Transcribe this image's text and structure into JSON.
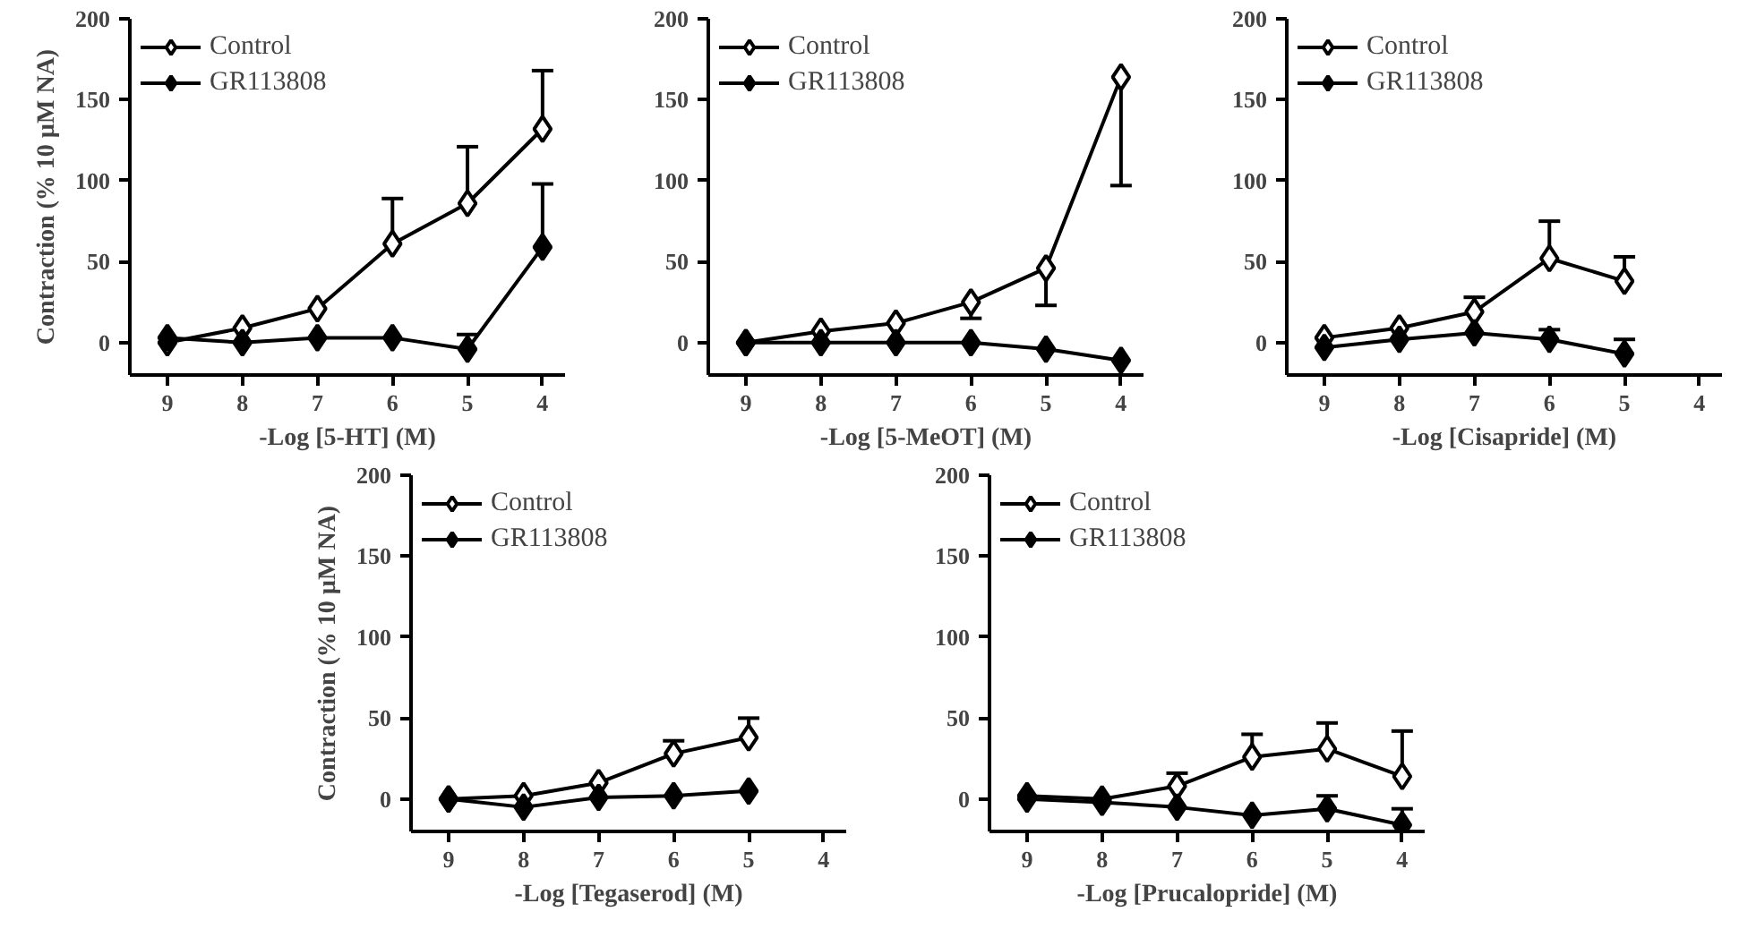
{
  "chart_data": [
    {
      "type": "line",
      "xlabel": "-Log [5-HT] (M)",
      "ylabel": "Contraction (% 10 µM NA)",
      "x": [
        9,
        8,
        7,
        6,
        5,
        4
      ],
      "xlim": [
        9.5,
        3.7
      ],
      "xticks": [
        9,
        8,
        7,
        6,
        5,
        4
      ],
      "ylim": [
        -20,
        200
      ],
      "yticks": [
        0,
        50,
        100,
        150,
        200
      ],
      "legend": "top left",
      "marker": "diamond",
      "grid": false,
      "series": [
        {
          "name": "Control",
          "color": "#ffffff",
          "values": [
            0,
            9,
            21,
            61,
            86,
            132
          ],
          "errors": [
            null,
            null,
            null,
            [
              61,
              89
            ],
            [
              86,
              121
            ],
            [
              132,
              168
            ]
          ]
        },
        {
          "name": "GR113808",
          "color": "#000000",
          "values": [
            3,
            0,
            3,
            3,
            -4,
            59
          ],
          "errors": [
            null,
            null,
            null,
            null,
            [
              -4,
              5
            ],
            [
              59,
              98
            ]
          ]
        }
      ]
    },
    {
      "type": "line",
      "xlabel": "-Log [5-MeOT] (M)",
      "x": [
        9,
        8,
        7,
        6,
        5,
        4
      ],
      "xlim": [
        9.5,
        3.7
      ],
      "xticks": [
        9,
        8,
        7,
        6,
        5,
        4
      ],
      "ylim": [
        -20,
        200
      ],
      "yticks": [
        0,
        50,
        100,
        150,
        200
      ],
      "legend": "top left",
      "marker": "diamond",
      "grid": false,
      "series": [
        {
          "name": "Control",
          "color": "#ffffff",
          "values": [
            0,
            7,
            12,
            25,
            46,
            164
          ],
          "errors": [
            null,
            null,
            null,
            [
              15,
              25
            ],
            [
              23,
              46
            ],
            [
              97,
              164
            ]
          ]
        },
        {
          "name": "GR113808",
          "color": "#000000",
          "values": [
            0,
            0,
            0,
            0,
            -4,
            -11
          ]
        }
      ]
    },
    {
      "type": "line",
      "xlabel": "-Log [Cisapride] (M)",
      "x": [
        9,
        8,
        7,
        6,
        5
      ],
      "xlim": [
        9.5,
        3.7
      ],
      "xticks": [
        9,
        8,
        7,
        6,
        5,
        4
      ],
      "ylim": [
        -20,
        200
      ],
      "yticks": [
        0,
        50,
        100,
        150,
        200
      ],
      "legend": "top left",
      "marker": "diamond",
      "grid": false,
      "series": [
        {
          "name": "Control",
          "color": "#ffffff",
          "values": [
            3,
            9,
            19,
            52,
            38
          ],
          "errors": [
            null,
            null,
            [
              19,
              28
            ],
            [
              52,
              75
            ],
            [
              38,
              53
            ]
          ]
        },
        {
          "name": "GR113808",
          "color": "#000000",
          "values": [
            -3,
            2,
            6,
            2,
            -7
          ],
          "errors": [
            null,
            null,
            null,
            [
              2,
              8
            ],
            [
              -7,
              2
            ]
          ]
        }
      ]
    },
    {
      "type": "line",
      "xlabel": "-Log [Tegaserod] (M)",
      "ylabel": "Contraction (% 10 µM NA)",
      "x": [
        9,
        8,
        7,
        6,
        5
      ],
      "xlim": [
        9.5,
        3.7
      ],
      "xticks": [
        9,
        8,
        7,
        6,
        5,
        4
      ],
      "ylim": [
        -20,
        200
      ],
      "yticks": [
        0,
        50,
        100,
        150,
        200
      ],
      "legend": "top left",
      "marker": "diamond",
      "grid": false,
      "series": [
        {
          "name": "Control",
          "color": "#ffffff",
          "values": [
            0,
            2,
            10,
            28,
            38
          ],
          "errors": [
            null,
            null,
            null,
            [
              28,
              36
            ],
            [
              38,
              50
            ]
          ]
        },
        {
          "name": "GR113808",
          "color": "#000000",
          "values": [
            0,
            -5,
            1,
            2,
            5
          ]
        }
      ]
    },
    {
      "type": "line",
      "xlabel": "-Log [Prucalopride] (M)",
      "x": [
        9,
        8,
        7,
        6,
        5,
        4
      ],
      "xlim": [
        9.5,
        3.7
      ],
      "xticks": [
        9,
        8,
        7,
        6,
        5,
        4
      ],
      "ylim": [
        -20,
        200
      ],
      "yticks": [
        0,
        50,
        100,
        150,
        200
      ],
      "legend": "top left",
      "marker": "diamond",
      "grid": false,
      "series": [
        {
          "name": "Control",
          "color": "#ffffff",
          "values": [
            2,
            0,
            8,
            26,
            31,
            14
          ],
          "errors": [
            null,
            null,
            [
              8,
              16
            ],
            [
              26,
              40
            ],
            [
              31,
              47
            ],
            [
              14,
              42
            ]
          ]
        },
        {
          "name": "GR113808",
          "color": "#000000",
          "values": [
            0,
            -2,
            -5,
            -10,
            -6,
            -16
          ],
          "errors": [
            null,
            null,
            null,
            null,
            [
              -6,
              2
            ],
            [
              -16,
              -6
            ]
          ]
        }
      ]
    }
  ]
}
